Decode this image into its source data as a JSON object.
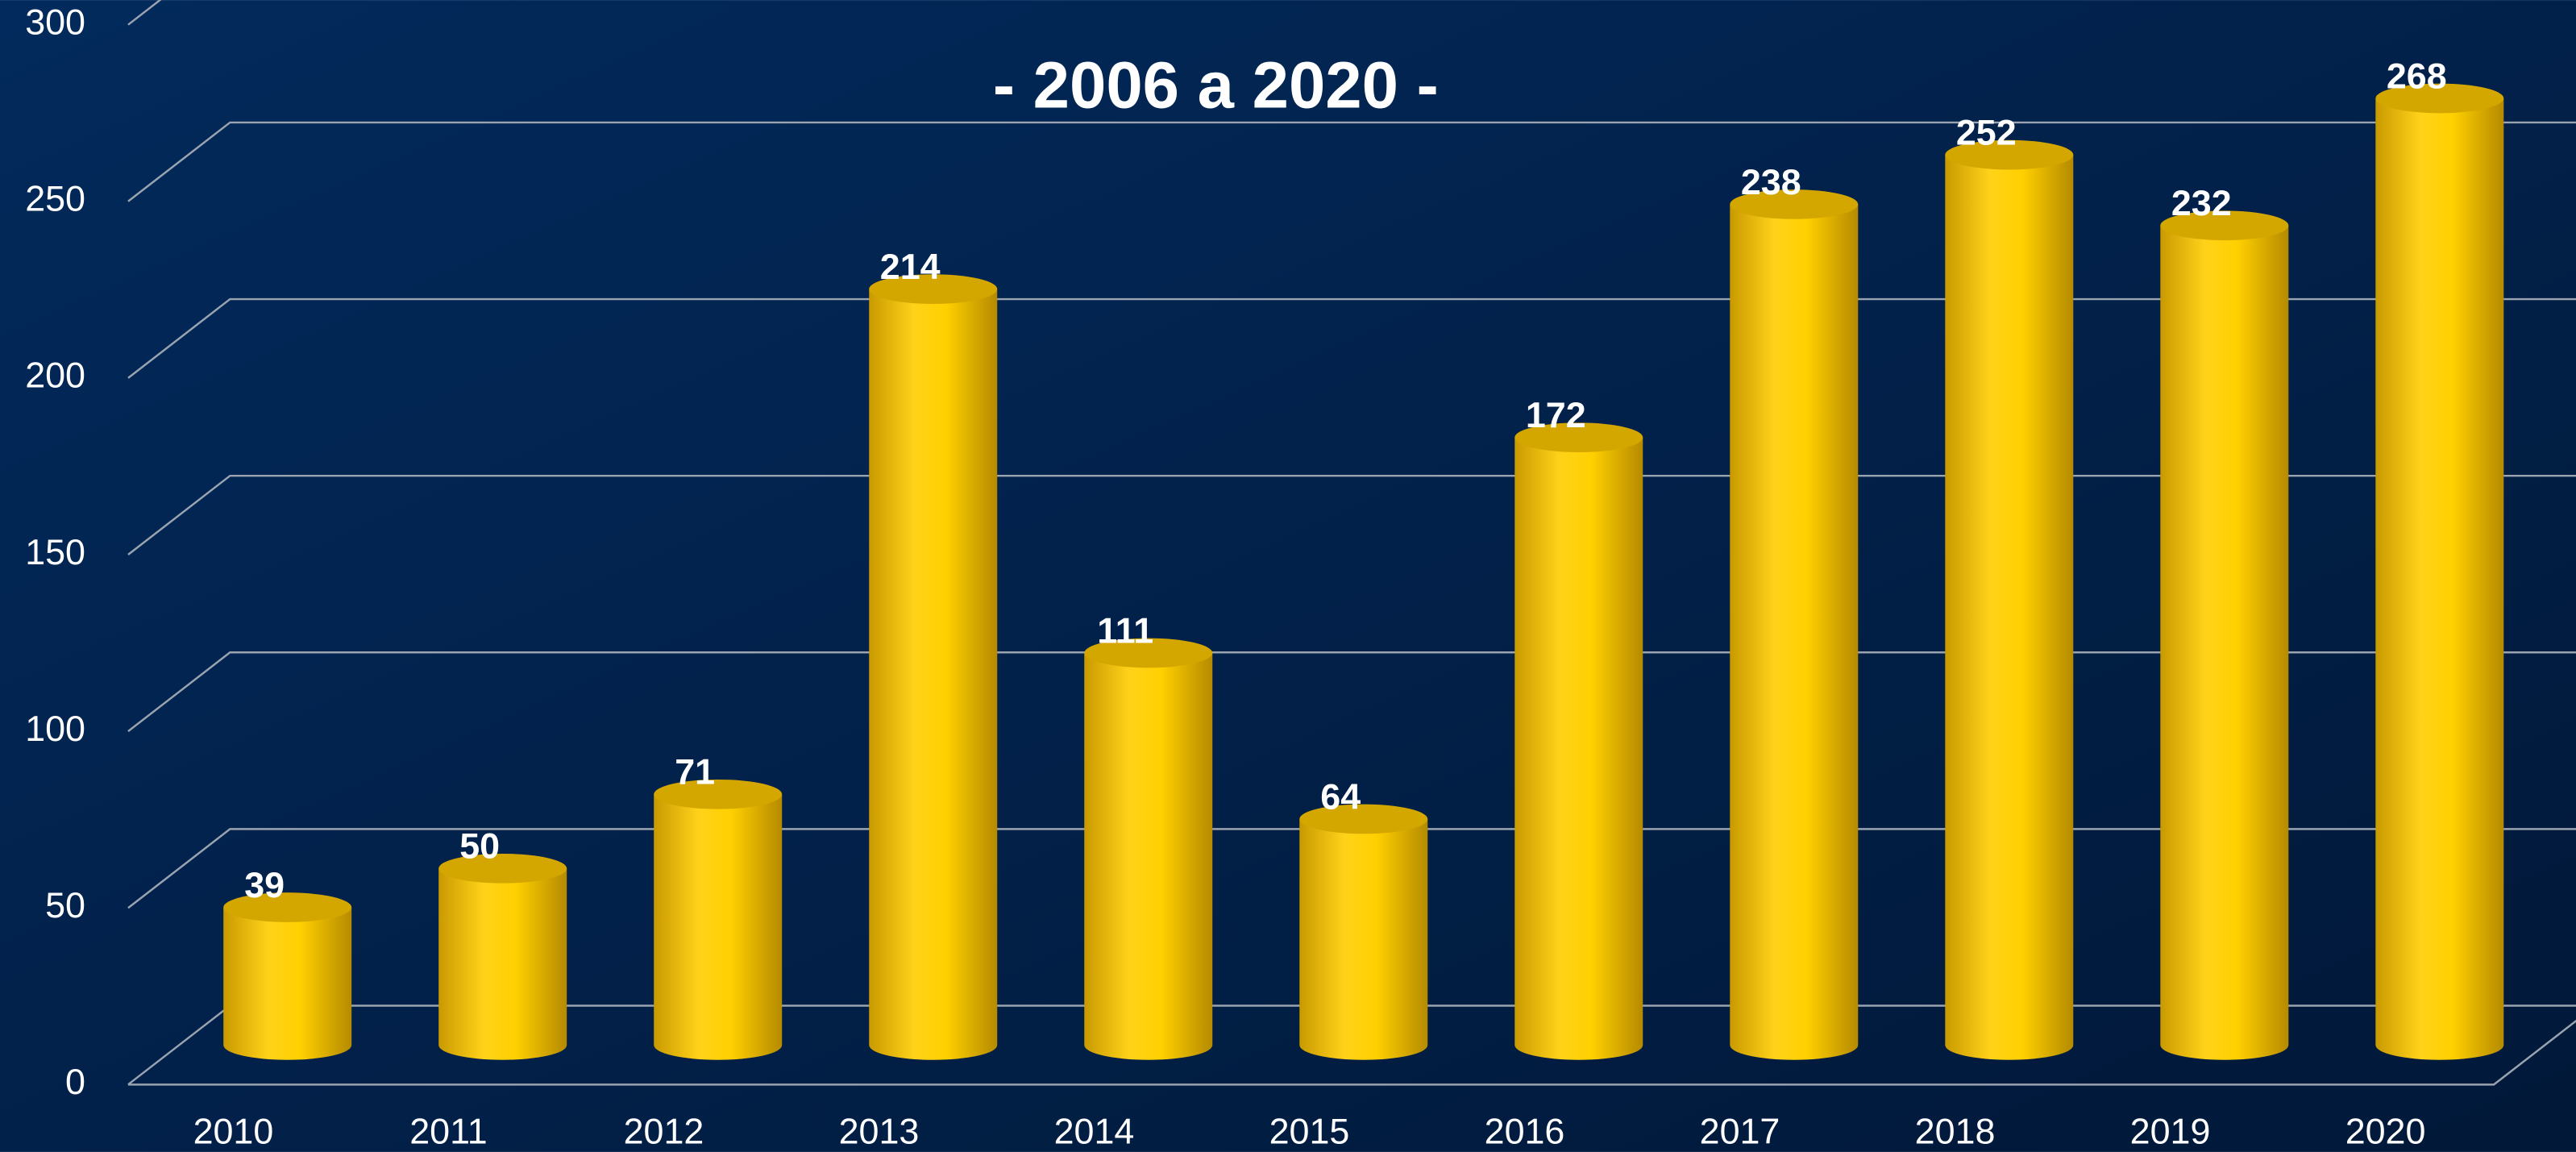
{
  "chart_data": {
    "type": "bar",
    "title": "- 2006 a 2020 -",
    "categories": [
      "2010",
      "2011",
      "2012",
      "2013",
      "2014",
      "2015",
      "2016",
      "2017",
      "2018",
      "2019",
      "2020"
    ],
    "values": [
      39,
      50,
      71,
      214,
      111,
      64,
      172,
      238,
      252,
      232,
      268
    ],
    "color": "#ffd000",
    "ylim": [
      0,
      300
    ],
    "yticks": [
      0,
      50,
      100,
      150,
      200,
      250,
      300
    ],
    "grid": true
  }
}
